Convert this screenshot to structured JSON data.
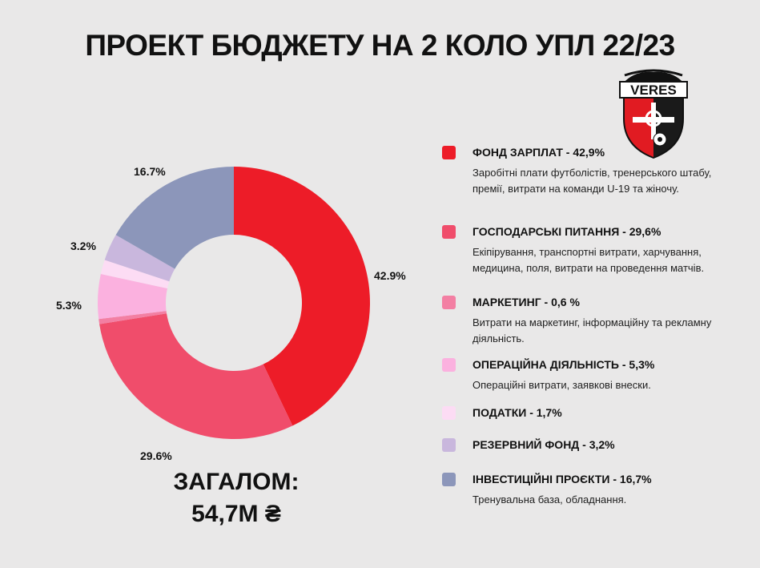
{
  "title": "ПРОЕКТ БЮДЖЕТУ НА 2 КОЛО УПЛ 22/23",
  "total": {
    "label": "ЗАГАЛОМ:",
    "value": "54,7М ₴"
  },
  "logo": {
    "text": "VERES",
    "icon": "veres-club-crest"
  },
  "chart_data": {
    "type": "pie",
    "donut": true,
    "slices": [
      {
        "name": "ФОНД ЗАРПЛАТ",
        "value": 42.9,
        "label": "42.9%",
        "color": "#ed1c28"
      },
      {
        "name": "ГОСПОДАРСЬКІ ПИТАННЯ",
        "value": 29.6,
        "label": "29.6%",
        "color": "#f04d6b"
      },
      {
        "name": "МАРКЕТИНГ",
        "value": 0.6,
        "label": "",
        "color": "#f37fa3"
      },
      {
        "name": "ОПЕРАЦІЙНА ДІЯЛЬНІСТЬ",
        "value": 5.3,
        "label": "5.3%",
        "color": "#fbb1df"
      },
      {
        "name": "ПОДАТКИ",
        "value": 1.7,
        "label": "",
        "color": "#fcdcf4"
      },
      {
        "name": "РЕЗЕРВНИЙ ФОНД",
        "value": 3.2,
        "label": "3.2%",
        "color": "#c9b7dd"
      },
      {
        "name": "ІНВЕСТИЦІЙНІ ПРОЄКТИ",
        "value": 16.7,
        "label": "16.7%",
        "color": "#8c96ba"
      }
    ]
  },
  "legend": [
    {
      "title": "ФОНД ЗАРПЛАТ - 42,9%",
      "desc": "Заробітні плати футболістів, тренерського штабу, премії, витрати на команди U-19 та жіночу.",
      "color": "#ed1c28"
    },
    {
      "title": "ГОСПОДАРСЬКІ ПИТАННЯ - 29,6%",
      "desc": "Екіпірування, транспортні витрати, харчування, медицина, поля, витрати на проведення матчів.",
      "color": "#f04d6b"
    },
    {
      "title": "МАРКЕТИНГ - 0,6 %",
      "desc": "Витрати на маркетинг, інформаційну та рекламну діяльність.",
      "color": "#f37fa3"
    },
    {
      "title": "ОПЕРАЦІЙНА ДІЯЛЬНІСТЬ - 5,3%",
      "desc": "Операційні витрати, заявкові внески.",
      "color": "#fbb1df"
    },
    {
      "title": "ПОДАТКИ - 1,7%",
      "desc": "",
      "color": "#fcdcf4"
    },
    {
      "title": "РЕЗЕРВНИЙ ФОНД - 3,2%",
      "desc": "",
      "color": "#c9b7dd"
    },
    {
      "title": "ІНВЕСТИЦІЙНІ ПРОЄКТИ - 16,7%",
      "desc": "Тренувальна база, обладнання.",
      "color": "#8c96ba"
    }
  ]
}
